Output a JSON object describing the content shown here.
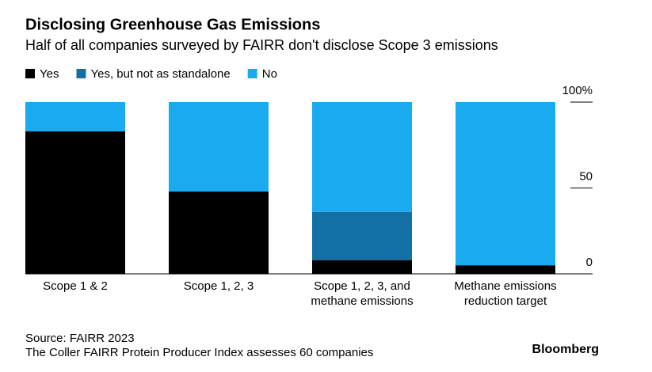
{
  "chart_data": {
    "type": "stacked_bar",
    "title": "Disclosing Greenhouse Gas Emissions",
    "subtitle": "Half of all companies surveyed by FAIRR don't disclose Scope 3 emissions",
    "categories": [
      "Scope 1 & 2",
      "Scope 1, 2, 3",
      "Scope 1, 2, 3, and methane emissions",
      "Methane emissions reduction target"
    ],
    "series": [
      {
        "name": "Yes",
        "color": "#000000",
        "values": [
          83,
          48,
          8,
          5
        ]
      },
      {
        "name": "Yes, but not as standalone",
        "color": "#1270a4",
        "values": [
          0,
          0,
          28,
          0
        ]
      },
      {
        "name": "No",
        "color": "#1aaaef",
        "values": [
          17,
          52,
          64,
          95
        ]
      }
    ],
    "ylim": [
      0,
      100
    ],
    "yticks": [
      0,
      50,
      {
        "value": 100,
        "label": "100%"
      }
    ],
    "legend": "top-left",
    "source": "Source: FAIRR 2023",
    "note": "The Coller FAIRR Protein Producer Index assesses 60 companies",
    "brand": "Bloomberg"
  }
}
